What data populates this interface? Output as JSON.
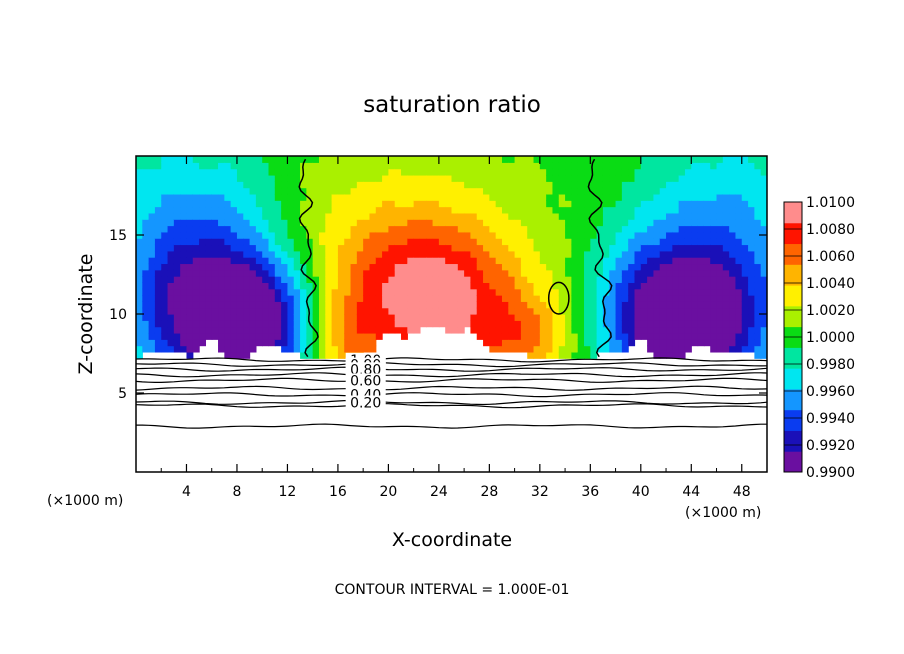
{
  "chart_data": {
    "type": "heatmap",
    "title": "saturation ratio",
    "xlabel": "X-coordinate",
    "ylabel": "Z-coordinate",
    "x_unit": "(×1000 m)",
    "y_unit": "(×1000 m)",
    "xlim": [
      0,
      50
    ],
    "ylim": [
      0,
      20
    ],
    "x_ticks": [
      4,
      8,
      12,
      16,
      20,
      24,
      28,
      32,
      36,
      40,
      44,
      48
    ],
    "y_ticks": [
      5,
      10,
      15
    ],
    "colorbar": {
      "min": 0.99,
      "max": 1.01,
      "ticks": [
        "0.9900",
        "0.9920",
        "0.9940",
        "0.9960",
        "0.9980",
        "1.0000",
        "1.0020",
        "1.0040",
        "1.0060",
        "1.0080",
        "1.0100"
      ],
      "colors": [
        "#6a0fa0",
        "#1a10b8",
        "#0a3cf0",
        "#1496ff",
        "#00e6f0",
        "#00e6a0",
        "#0adc14",
        "#aaf000",
        "#fff000",
        "#ffb400",
        "#ff6400",
        "#ff1400",
        "#ff8c8c"
      ]
    },
    "field": {
      "base_height": 7.3,
      "peaks": [
        {
          "x": 23.5,
          "z": 10.5,
          "value": 1.0085
        },
        {
          "x": 33.5,
          "z": 11,
          "value": 1.0005
        }
      ],
      "troughs": [
        {
          "x": 6,
          "z": 10,
          "value": 0.9915
        },
        {
          "x": 10.5,
          "z": 9.5,
          "value": 0.9925
        },
        {
          "x": 41,
          "z": 10,
          "value": 0.992
        },
        {
          "x": 45,
          "z": 9.5,
          "value": 0.9925
        }
      ]
    },
    "contour_lines": [
      {
        "level": 1.0,
        "label": "1.00",
        "z": 7.1
      },
      {
        "level": 0.9,
        "label": "0.90",
        "z": 6.8
      },
      {
        "level": 0.8,
        "label": "0.80",
        "z": 6.5
      },
      {
        "level": 0.7,
        "label": "",
        "z": 6.15
      },
      {
        "level": 0.6,
        "label": "0.60",
        "z": 5.8
      },
      {
        "level": 0.5,
        "label": "",
        "z": 5.3
      },
      {
        "level": 0.4,
        "label": "0.40",
        "z": 4.9
      },
      {
        "level": 0.3,
        "label": "",
        "z": 4.2
      },
      {
        "level": 0.2,
        "label": "0.20",
        "z": 4.4
      },
      {
        "level": 0.1,
        "label": "",
        "z": 2.9
      }
    ],
    "contour_interval_text": "CONTOUR INTERVAL =  1.000E-01"
  }
}
